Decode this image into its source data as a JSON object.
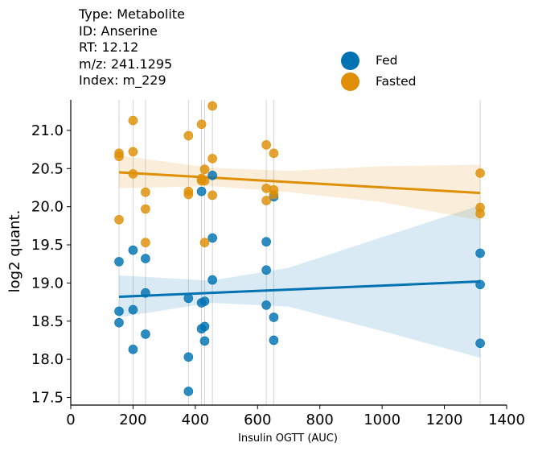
{
  "meta": {
    "type": "Type: Metabolite",
    "id": "ID: Anserine",
    "rt": "RT: 12.12",
    "mz": "m/z: 241.1295",
    "index": "Index: m_229"
  },
  "chart_data": {
    "type": "scatter",
    "title": "",
    "xlabel": "Insulin OGTT (AUC)",
    "ylabel": "log2 quant.",
    "xlim": [
      0,
      1400
    ],
    "ylim": [
      17.4,
      21.4
    ],
    "xticks": [
      "0",
      "200",
      "400",
      "600",
      "800",
      "1000",
      "1200",
      "1400"
    ],
    "yticks": [
      "17.5",
      "18.0",
      "18.5",
      "19.0",
      "19.5",
      "20.0",
      "20.5",
      "21.0"
    ],
    "grid": false,
    "legend_position": "top-right",
    "subject_x": [
      155,
      200,
      240,
      378,
      420,
      430,
      455,
      628,
      652,
      1315
    ],
    "series": [
      {
        "name": "Fed",
        "color": "#0173B2",
        "points": [
          [
            155,
            19.28
          ],
          [
            155,
            18.63
          ],
          [
            155,
            18.48
          ],
          [
            200,
            19.43
          ],
          [
            200,
            18.65
          ],
          [
            200,
            18.13
          ],
          [
            240,
            19.32
          ],
          [
            240,
            18.87
          ],
          [
            240,
            18.33
          ],
          [
            378,
            18.8
          ],
          [
            378,
            18.03
          ],
          [
            378,
            17.58
          ],
          [
            420,
            20.2
          ],
          [
            420,
            18.74
          ],
          [
            420,
            18.4
          ],
          [
            430,
            18.76
          ],
          [
            430,
            18.43
          ],
          [
            430,
            18.24
          ],
          [
            455,
            20.41
          ],
          [
            455,
            19.59
          ],
          [
            455,
            19.04
          ],
          [
            628,
            19.54
          ],
          [
            628,
            19.17
          ],
          [
            628,
            18.71
          ],
          [
            652,
            20.13
          ],
          [
            652,
            18.55
          ],
          [
            652,
            18.25
          ],
          [
            1315,
            19.39
          ],
          [
            1315,
            18.98
          ],
          [
            1315,
            18.21
          ]
        ],
        "trend": [
          [
            155,
            18.82
          ],
          [
            1315,
            19.02
          ]
        ],
        "ci_lower": [
          [
            155,
            18.55
          ],
          [
            450,
            18.74
          ],
          [
            700,
            18.69
          ],
          [
            1000,
            18.37
          ],
          [
            1315,
            18.02
          ]
        ],
        "ci_upper": [
          [
            155,
            19.1
          ],
          [
            450,
            19.03
          ],
          [
            700,
            19.2
          ],
          [
            1000,
            19.6
          ],
          [
            1315,
            20.02
          ]
        ]
      },
      {
        "name": "Fasted",
        "color": "#DE8F05",
        "points": [
          [
            155,
            20.7
          ],
          [
            155,
            20.66
          ],
          [
            155,
            19.83
          ],
          [
            200,
            21.13
          ],
          [
            200,
            20.72
          ],
          [
            200,
            20.43
          ],
          [
            240,
            20.19
          ],
          [
            240,
            19.97
          ],
          [
            240,
            19.53
          ],
          [
            378,
            20.93
          ],
          [
            378,
            20.2
          ],
          [
            378,
            20.16
          ],
          [
            420,
            21.08
          ],
          [
            420,
            20.37
          ],
          [
            420,
            20.34
          ],
          [
            430,
            20.49
          ],
          [
            430,
            20.34
          ],
          [
            430,
            19.53
          ],
          [
            455,
            21.32
          ],
          [
            455,
            20.63
          ],
          [
            455,
            20.15
          ],
          [
            628,
            20.81
          ],
          [
            628,
            20.24
          ],
          [
            628,
            20.08
          ],
          [
            652,
            20.7
          ],
          [
            652,
            20.22
          ],
          [
            652,
            20.16
          ],
          [
            1315,
            20.44
          ],
          [
            1315,
            19.99
          ],
          [
            1315,
            19.91
          ]
        ],
        "trend": [
          [
            155,
            20.45
          ],
          [
            1315,
            20.18
          ]
        ],
        "ci_lower": [
          [
            155,
            20.24
          ],
          [
            450,
            20.27
          ],
          [
            700,
            20.19
          ],
          [
            1000,
            20.06
          ],
          [
            1315,
            19.82
          ]
        ],
        "ci_upper": [
          [
            155,
            20.67
          ],
          [
            450,
            20.51
          ],
          [
            700,
            20.47
          ],
          [
            1000,
            20.53
          ],
          [
            1315,
            20.55
          ]
        ]
      }
    ]
  }
}
